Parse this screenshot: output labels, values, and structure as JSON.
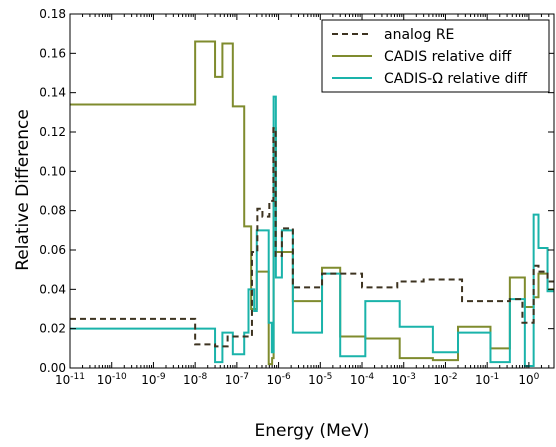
{
  "chart_data": {
    "type": "line",
    "step": true,
    "xscale": "log",
    "xlabel": "Energy (MeV)",
    "ylabel": "Relative Difference",
    "xlim": [
      1e-11,
      4
    ],
    "ylim": [
      0,
      0.18
    ],
    "grid": false,
    "legend_position": "top-right",
    "x_ticks": [
      {
        "value": 1e-11,
        "label": "10-11"
      },
      {
        "value": 1e-10,
        "label": "10-10"
      },
      {
        "value": 1e-09,
        "label": "10-9"
      },
      {
        "value": 1e-08,
        "label": "10-8"
      },
      {
        "value": 1e-07,
        "label": "10-7"
      },
      {
        "value": 1e-06,
        "label": "10-6"
      },
      {
        "value": 1e-05,
        "label": "10-5"
      },
      {
        "value": 0.0001,
        "label": "10-4"
      },
      {
        "value": 0.001,
        "label": "10-3"
      },
      {
        "value": 0.01,
        "label": "10-2"
      },
      {
        "value": 0.1,
        "label": "10-1"
      },
      {
        "value": 1,
        "label": "100"
      }
    ],
    "y_ticks": [
      "0.00",
      "0.02",
      "0.04",
      "0.06",
      "0.08",
      "0.10",
      "0.12",
      "0.14",
      "0.16",
      "0.18"
    ],
    "series": [
      {
        "name": "analog RE",
        "color": "#3d3320",
        "dash": true,
        "points": [
          [
            1e-11,
            0.025
          ],
          [
            1e-08,
            0.025
          ],
          [
            1e-08,
            0.012
          ],
          [
            3e-08,
            0.012
          ],
          [
            3e-08,
            0.011
          ],
          [
            6e-08,
            0.011
          ],
          [
            6e-08,
            0.016
          ],
          [
            1.3e-07,
            0.016
          ],
          [
            1.3e-07,
            0.016
          ],
          [
            2.3e-07,
            0.016
          ],
          [
            2.3e-07,
            0.059
          ],
          [
            3.1e-07,
            0.059
          ],
          [
            3.1e-07,
            0.081
          ],
          [
            4.1e-07,
            0.081
          ],
          [
            4.1e-07,
            0.077
          ],
          [
            6e-07,
            0.077
          ],
          [
            6e-07,
            0.085
          ],
          [
            7.5e-07,
            0.085
          ],
          [
            7.5e-07,
            0.122
          ],
          [
            8.5e-07,
            0.122
          ],
          [
            8.5e-07,
            0.057
          ],
          [
            1.2e-06,
            0.057
          ],
          [
            1.2e-06,
            0.071
          ],
          [
            2.2e-06,
            0.071
          ],
          [
            2.2e-06,
            0.041
          ],
          [
            1.1e-05,
            0.041
          ],
          [
            1.1e-05,
            0.048
          ],
          [
            0.0001,
            0.048
          ],
          [
            0.0001,
            0.041
          ],
          [
            0.0007,
            0.041
          ],
          [
            0.0007,
            0.044
          ],
          [
            0.003,
            0.044
          ],
          [
            0.003,
            0.045
          ],
          [
            0.025,
            0.045
          ],
          [
            0.025,
            0.034
          ],
          [
            0.35,
            0.034
          ],
          [
            0.35,
            0.035
          ],
          [
            0.7,
            0.035
          ],
          [
            0.7,
            0.023
          ],
          [
            1.3,
            0.023
          ],
          [
            1.3,
            0.052
          ],
          [
            1.7,
            0.052
          ],
          [
            1.7,
            0.049
          ],
          [
            2.8,
            0.049
          ],
          [
            2.8,
            0.044
          ],
          [
            4,
            0.044
          ]
        ]
      },
      {
        "name": "CADIS relative diff",
        "color": "#7f8b2e",
        "dash": false,
        "points": [
          [
            1e-11,
            0.134
          ],
          [
            1e-08,
            0.134
          ],
          [
            1e-08,
            0.166
          ],
          [
            3e-08,
            0.166
          ],
          [
            3e-08,
            0.148
          ],
          [
            4.5e-08,
            0.148
          ],
          [
            4.5e-08,
            0.165
          ],
          [
            8e-08,
            0.165
          ],
          [
            8e-08,
            0.133
          ],
          [
            1.5e-07,
            0.133
          ],
          [
            1.5e-07,
            0.072
          ],
          [
            2.2e-07,
            0.072
          ],
          [
            2.2e-07,
            0.03
          ],
          [
            3e-07,
            0.03
          ],
          [
            3e-07,
            0.049
          ],
          [
            5.8e-07,
            0.049
          ],
          [
            5.8e-07,
            0.002
          ],
          [
            7e-07,
            0.002
          ],
          [
            7e-07,
            0.005
          ],
          [
            7.6e-07,
            0.005
          ],
          [
            7.6e-07,
            0.122
          ],
          [
            8.6e-07,
            0.122
          ],
          [
            8.6e-07,
            0.059
          ],
          [
            2.2e-06,
            0.059
          ],
          [
            2.2e-06,
            0.034
          ],
          [
            1.1e-05,
            0.034
          ],
          [
            1.1e-05,
            0.051
          ],
          [
            3e-05,
            0.051
          ],
          [
            3e-05,
            0.016
          ],
          [
            0.00012,
            0.016
          ],
          [
            0.00012,
            0.015
          ],
          [
            0.0008,
            0.015
          ],
          [
            0.0008,
            0.005
          ],
          [
            0.005,
            0.005
          ],
          [
            0.005,
            0.004
          ],
          [
            0.02,
            0.004
          ],
          [
            0.02,
            0.021
          ],
          [
            0.12,
            0.021
          ],
          [
            0.12,
            0.01
          ],
          [
            0.35,
            0.01
          ],
          [
            0.35,
            0.046
          ],
          [
            0.8,
            0.046
          ],
          [
            0.8,
            0.031
          ],
          [
            1.3,
            0.031
          ],
          [
            1.3,
            0.036
          ],
          [
            1.7,
            0.036
          ],
          [
            1.7,
            0.048
          ],
          [
            2.8,
            0.048
          ],
          [
            2.8,
            0.04
          ],
          [
            4,
            0.04
          ]
        ]
      },
      {
        "name": "CADIS-Ω relative diff",
        "color": "#1ab3aa",
        "dash": false,
        "points": [
          [
            1e-11,
            0.02
          ],
          [
            1e-08,
            0.02
          ],
          [
            1e-08,
            0.02
          ],
          [
            3e-08,
            0.02
          ],
          [
            3e-08,
            0.003
          ],
          [
            4.5e-08,
            0.003
          ],
          [
            4.5e-08,
            0.018
          ],
          [
            8e-08,
            0.018
          ],
          [
            8e-08,
            0.007
          ],
          [
            1.5e-07,
            0.007
          ],
          [
            1.5e-07,
            0.018
          ],
          [
            1.9e-07,
            0.018
          ],
          [
            1.9e-07,
            0.04
          ],
          [
            2.6e-07,
            0.04
          ],
          [
            2.6e-07,
            0.029
          ],
          [
            3e-07,
            0.029
          ],
          [
            3e-07,
            0.07
          ],
          [
            5.8e-07,
            0.07
          ],
          [
            5.8e-07,
            0.023
          ],
          [
            6.9e-07,
            0.023
          ],
          [
            6.9e-07,
            0.008
          ],
          [
            7.6e-07,
            0.008
          ],
          [
            7.6e-07,
            0.138
          ],
          [
            8.6e-07,
            0.138
          ],
          [
            8.6e-07,
            0.046
          ],
          [
            1.2e-06,
            0.046
          ],
          [
            1.2e-06,
            0.07
          ],
          [
            2.2e-06,
            0.07
          ],
          [
            2.2e-06,
            0.018
          ],
          [
            1.1e-05,
            0.018
          ],
          [
            1.1e-05,
            0.048
          ],
          [
            3e-05,
            0.048
          ],
          [
            3e-05,
            0.006
          ],
          [
            0.00012,
            0.006
          ],
          [
            0.00012,
            0.034
          ],
          [
            0.0008,
            0.034
          ],
          [
            0.0008,
            0.021
          ],
          [
            0.005,
            0.021
          ],
          [
            0.005,
            0.008
          ],
          [
            0.02,
            0.008
          ],
          [
            0.02,
            0.018
          ],
          [
            0.12,
            0.018
          ],
          [
            0.12,
            0.003
          ],
          [
            0.35,
            0.003
          ],
          [
            0.35,
            0.035
          ],
          [
            0.8,
            0.035
          ],
          [
            0.8,
            0.001
          ],
          [
            1.3,
            0.001
          ],
          [
            1.3,
            0.078
          ],
          [
            1.7,
            0.078
          ],
          [
            1.7,
            0.061
          ],
          [
            2.8,
            0.061
          ],
          [
            2.8,
            0.039
          ],
          [
            4,
            0.039
          ]
        ]
      }
    ]
  }
}
